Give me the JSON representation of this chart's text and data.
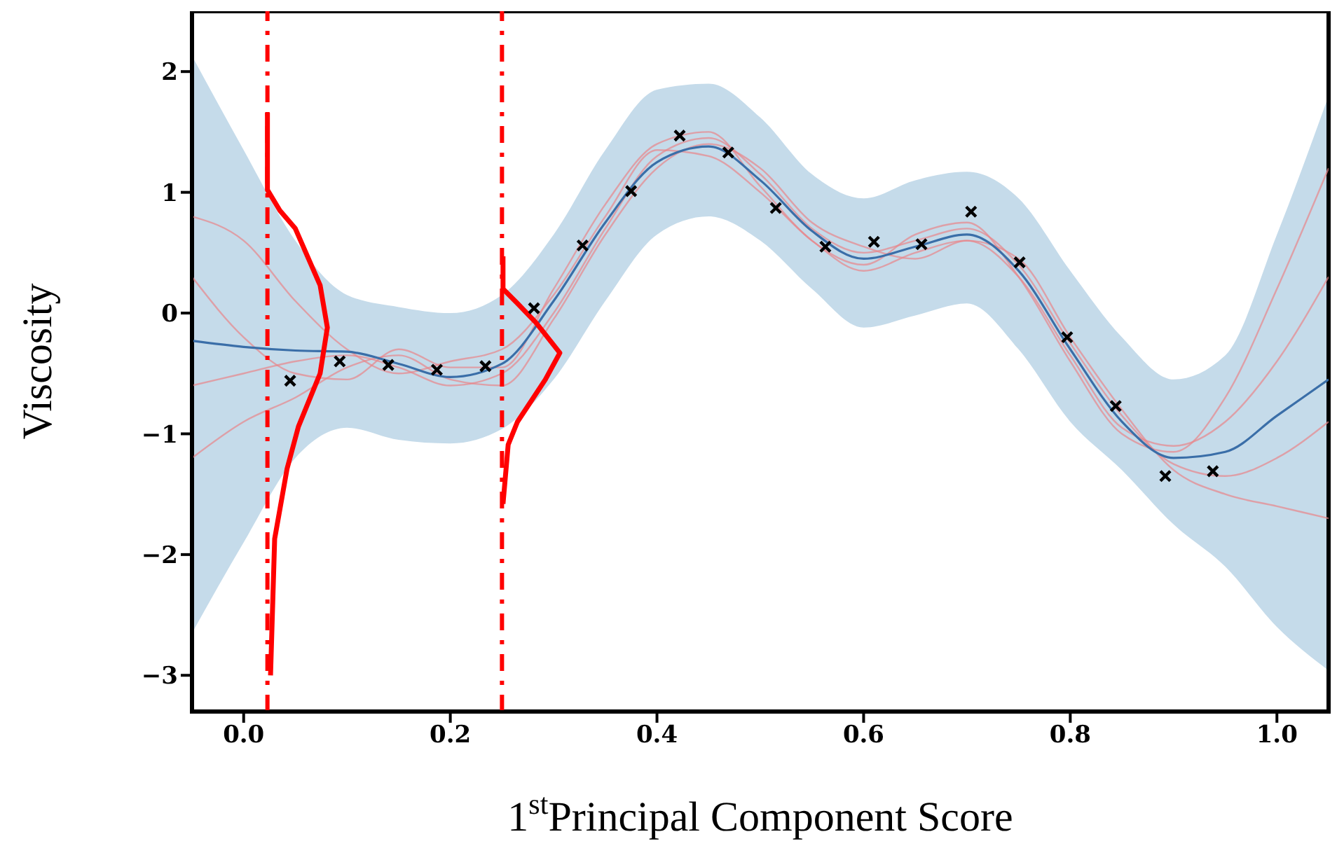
{
  "chart_data": {
    "type": "line",
    "xlabel": "1$^{st}$Principal Component Score",
    "ylabel": "Viscosity",
    "xlim": [
      -0.05,
      1.05
    ],
    "ylim": [
      -3.3,
      2.5
    ],
    "xticks": [
      {
        "value": 0,
        "label": "0.0"
      },
      {
        "value": 0.2,
        "label": "0.2"
      },
      {
        "value": 0.4,
        "label": "0.4"
      },
      {
        "value": 0.6,
        "label": "0.6"
      },
      {
        "value": 0.8,
        "label": "0.8"
      },
      {
        "value": 1,
        "label": "1.0"
      }
    ],
    "yticks": [
      {
        "value": -3,
        "label": "−3"
      },
      {
        "value": -2,
        "label": "−2"
      },
      {
        "value": -1,
        "label": "−1"
      },
      0,
      1,
      2
    ],
    "ref_lines": [
      {
        "axis": "x",
        "value": 0.023,
        "color": "#ff0000",
        "line_style": "dashed"
      },
      {
        "axis": "x",
        "value": 0.25,
        "color": "#ff0000",
        "line_style": "dashed"
      }
    ],
    "series": [
      {
        "type": "line",
        "color": "#e8868a",
        "x": [
          -0.05,
          0,
          0.05,
          0.1,
          0.15,
          0.2,
          0.25,
          0.3,
          0.35,
          0.4,
          0.45,
          0.5,
          0.55,
          0.6,
          0.65,
          0.7,
          0.75,
          0.8,
          0.85,
          0.9,
          0.95,
          1.0,
          1.05
        ],
        "values": [
          -0.6,
          -0.5,
          -0.4,
          -0.35,
          -0.45,
          -0.6,
          -0.5,
          0.0,
          0.7,
          1.3,
          1.45,
          1.15,
          0.7,
          0.5,
          0.6,
          0.7,
          0.4,
          -0.25,
          -0.85,
          -1.25,
          -1.35,
          -1.2,
          -0.9
        ]
      },
      {
        "type": "line",
        "color": "#e8868a",
        "x": [
          -0.05,
          0,
          0.05,
          0.1,
          0.15,
          0.2,
          0.25,
          0.3,
          0.35,
          0.4,
          0.45,
          0.5,
          0.55,
          0.6,
          0.65,
          0.7,
          0.75,
          0.8,
          0.85,
          0.9,
          0.95,
          1.0,
          1.05
        ],
        "values": [
          0.8,
          0.6,
          0.1,
          -0.3,
          -0.5,
          -0.4,
          -0.3,
          0.15,
          0.8,
          1.35,
          1.3,
          1.0,
          0.6,
          0.35,
          0.5,
          0.6,
          0.3,
          -0.35,
          -0.95,
          -1.1,
          -0.9,
          -0.4,
          0.3
        ]
      },
      {
        "type": "line",
        "color": "#e8868a",
        "x": [
          -0.05,
          0,
          0.05,
          0.1,
          0.15,
          0.2,
          0.25,
          0.3,
          0.35,
          0.4,
          0.45,
          0.5,
          0.55,
          0.6,
          0.65,
          0.7,
          0.75,
          0.8,
          0.85,
          0.9,
          0.95,
          1.0,
          1.05
        ],
        "values": [
          -1.2,
          -0.9,
          -0.7,
          -0.45,
          -0.35,
          -0.55,
          -0.6,
          -0.05,
          0.65,
          1.2,
          1.4,
          1.2,
          0.75,
          0.55,
          0.45,
          0.6,
          0.45,
          -0.2,
          -0.8,
          -1.3,
          -1.5,
          -1.6,
          -1.7
        ]
      },
      {
        "type": "line",
        "color": "#e8868a",
        "x": [
          -0.05,
          0,
          0.05,
          0.1,
          0.15,
          0.2,
          0.25,
          0.3,
          0.35,
          0.4,
          0.45,
          0.5,
          0.55,
          0.6,
          0.65,
          0.7,
          0.75,
          0.8,
          0.85,
          0.9,
          0.95,
          1.0,
          1.05
        ],
        "values": [
          0.3,
          -0.2,
          -0.5,
          -0.55,
          -0.3,
          -0.45,
          -0.45,
          0.2,
          0.9,
          1.4,
          1.5,
          1.05,
          0.6,
          0.4,
          0.65,
          0.75,
          0.3,
          -0.4,
          -1.0,
          -1.15,
          -0.7,
          0.2,
          1.2
        ]
      },
      {
        "color": "#3a6ea8",
        "x": [
          -0.05,
          0,
          0.05,
          0.1,
          0.15,
          0.2,
          0.25,
          0.3,
          0.35,
          0.4,
          0.45,
          0.5,
          0.55,
          0.6,
          0.65,
          0.7,
          0.75,
          0.8,
          0.85,
          0.9,
          0.95,
          1.0,
          1.05
        ],
        "values": [
          -0.23,
          -0.28,
          -0.31,
          -0.32,
          -0.42,
          -0.53,
          -0.42,
          0.1,
          0.75,
          1.25,
          1.38,
          1.1,
          0.68,
          0.45,
          0.55,
          0.65,
          0.35,
          -0.3,
          -0.9,
          -1.2,
          -1.15,
          -0.85,
          -0.55
        ],
        "upper": [
          2.13,
          1.35,
          0.6,
          0.15,
          0.05,
          0.0,
          0.15,
          0.65,
          1.35,
          1.85,
          1.9,
          1.62,
          1.15,
          0.95,
          1.1,
          1.17,
          0.95,
          0.35,
          -0.2,
          -0.55,
          -0.35,
          0.65,
          1.8
        ],
        "lower": [
          -2.65,
          -1.9,
          -1.2,
          -0.95,
          -1.05,
          -1.08,
          -0.96,
          -0.55,
          0.1,
          0.65,
          0.8,
          0.6,
          0.2,
          -0.12,
          -0.02,
          0.08,
          -0.3,
          -0.9,
          -1.3,
          -1.75,
          -2.1,
          -2.6,
          -2.96
        ]
      },
      {
        "type": "scatter",
        "color": "#000000",
        "marker": "cross",
        "x": [
          0.045,
          0.093,
          0.14,
          0.187,
          0.234,
          0.281,
          0.328,
          0.375,
          0.422,
          0.469,
          0.515,
          0.563,
          0.61,
          0.656,
          0.704,
          0.751,
          0.797,
          0.844,
          0.892,
          0.938
        ],
        "values": [
          -0.56,
          -0.4,
          -0.43,
          -0.47,
          -0.44,
          0.04,
          0.56,
          1.01,
          1.47,
          1.33,
          0.87,
          0.55,
          0.59,
          0.57,
          0.84,
          0.42,
          -0.2,
          -0.77,
          -1.35,
          -1.31
        ]
      },
      {
        "type": "line",
        "color": "#ff0000",
        "x": [
          0.023,
          0.023,
          0.035,
          0.05,
          0.074,
          0.081,
          0.074,
          0.053,
          0.042,
          0.03,
          0.026
        ],
        "values": [
          1.66,
          1.02,
          0.85,
          0.7,
          0.23,
          -0.12,
          -0.5,
          -0.94,
          -1.29,
          -1.87,
          -3.0
        ]
      },
      {
        "type": "line",
        "color": "#ff0000",
        "x": [
          0.251,
          0.251,
          0.265,
          0.283,
          0.306,
          0.292,
          0.265,
          0.256,
          0.251
        ],
        "values": [
          0.47,
          0.2,
          0.08,
          -0.08,
          -0.33,
          -0.55,
          -0.9,
          -1.09,
          -1.58
        ]
      }
    ]
  }
}
